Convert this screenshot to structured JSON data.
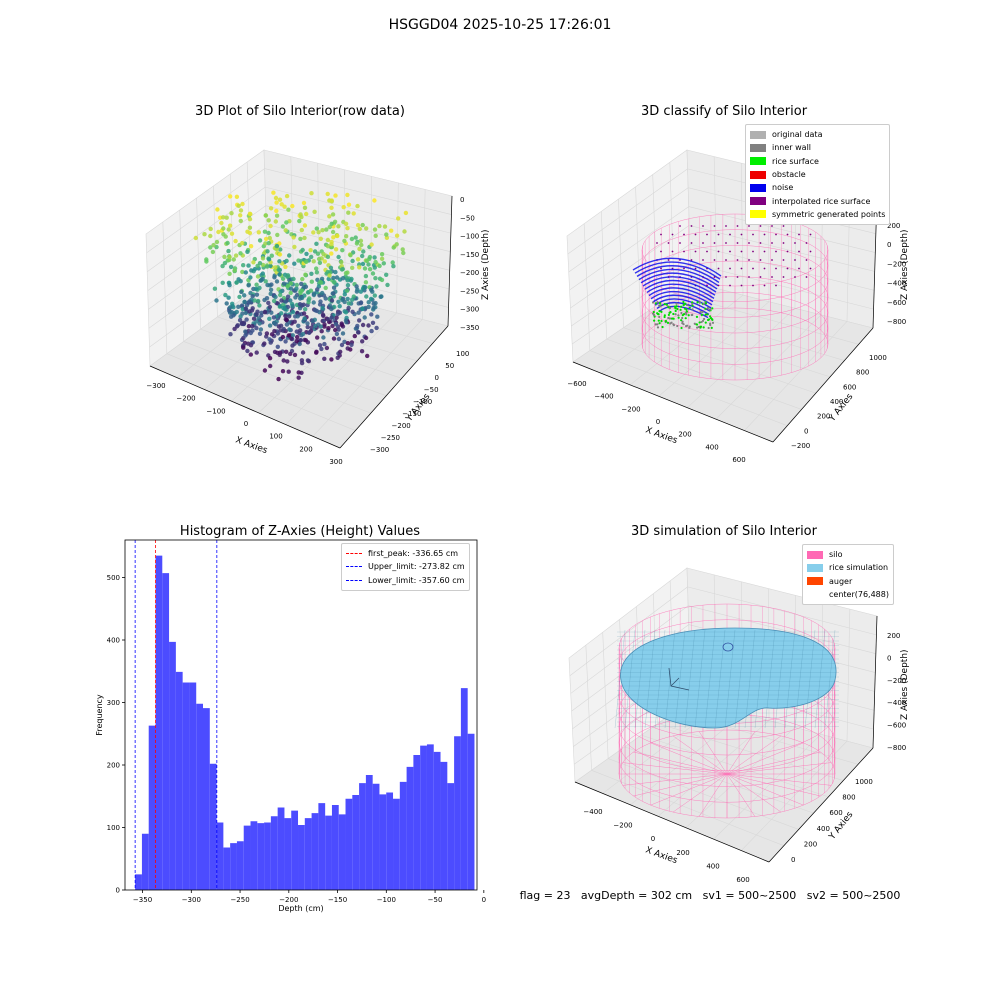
{
  "suptitle": "HSGGD04 2025-10-25 17:26:01",
  "panels": {
    "raw": {
      "title": "3D Plot of Silo Interior(row data)",
      "xlabel": "X Axies",
      "ylabel": "Y Axies",
      "zlabel": "Z Axies (Depth)",
      "xticks": [
        "−300",
        "−200",
        "−100",
        "0",
        "100",
        "200",
        "300"
      ],
      "yticks": [
        "100",
        "50",
        "0",
        "−50",
        "−100",
        "−150",
        "−200",
        "−250",
        "−300"
      ],
      "zticks": [
        "0",
        "−50",
        "−100",
        "−150",
        "−200",
        "−250",
        "−300",
        "−350"
      ]
    },
    "classify": {
      "title": "3D classify of Silo Interior",
      "xlabel": "X Axies",
      "ylabel": "Y Axies",
      "zlabel": "Z Axies (Depth)",
      "xticks": [
        "−600",
        "−400",
        "−200",
        "0",
        "200",
        "400",
        "600"
      ],
      "yticks": [
        "1000",
        "800",
        "600",
        "400",
        "200",
        "0",
        "−200"
      ],
      "zticks": [
        "200",
        "0",
        "−200",
        "−400",
        "−600",
        "−800"
      ],
      "legend": [
        {
          "label": "original data",
          "color": "#b0b0b0"
        },
        {
          "label": "inner wall",
          "color": "#808080"
        },
        {
          "label": "rice surface",
          "color": "#00ee00"
        },
        {
          "label": "obstacle",
          "color": "#ee0000"
        },
        {
          "label": "noise",
          "color": "#0000ee"
        },
        {
          "label": "interpolated rice surface",
          "color": "#800080"
        },
        {
          "label": "symmetric generated points",
          "color": "#ffff00"
        }
      ]
    },
    "simulation": {
      "title": "3D simulation of Silo Interior",
      "xlabel": "X Axies",
      "ylabel": "Y Axies",
      "zlabel": "Z Axies (Depth)",
      "xticks": [
        "−400",
        "−200",
        "0",
        "200",
        "400",
        "600"
      ],
      "yticks": [
        "1000",
        "800",
        "600",
        "400",
        "200",
        "0"
      ],
      "zticks": [
        "200",
        "0",
        "−200",
        "−400",
        "−600",
        "−800"
      ],
      "legend": [
        {
          "label": "silo",
          "color": "#ff69b4"
        },
        {
          "label": "rice simulation",
          "color": "#87ceeb"
        },
        {
          "label": "auger",
          "color": "#ff4500"
        },
        {
          "label": "center(76,488)",
          "color": "#ffffff"
        }
      ],
      "status": "flag = 23   avgDepth = 302 cm   sv1 = 500~2500   sv2 = 500~2500"
    }
  },
  "chart_data": [
    {
      "type": "bar",
      "title": "Histogram of Z-Axies (Height) Values",
      "xlabel": "Depth (cm)",
      "ylabel": "Frequency",
      "xlim": [
        -368,
        -7
      ],
      "ylim": [
        0,
        560
      ],
      "bin_start": -357.6,
      "bin_width": 6.96,
      "values": [
        25,
        90,
        263,
        535,
        507,
        397,
        349,
        332,
        332,
        298,
        291,
        202,
        108,
        68,
        75,
        78,
        103,
        110,
        107,
        108,
        118,
        132,
        115,
        127,
        104,
        115,
        123,
        139,
        119,
        136,
        121,
        146,
        152,
        171,
        184,
        170,
        153,
        156,
        146,
        173,
        197,
        216,
        231,
        233,
        221,
        205,
        171,
        246,
        323,
        250
      ],
      "xticks": [
        "−350",
        "−300",
        "−250",
        "−200",
        "−150",
        "−100",
        "−50",
        "0"
      ],
      "yticks": [
        "0",
        "100",
        "200",
        "300",
        "400",
        "500"
      ],
      "grid": false,
      "legend_position": "top-right",
      "bar_color": "#4c4cff",
      "lines": [
        {
          "label": "first_peak: -336.65 cm",
          "x": -336.65,
          "color": "#ff0000"
        },
        {
          "label": "Upper_limit: -273.82 cm",
          "x": -273.82,
          "color": "#0000ff"
        },
        {
          "label": "Lower_limit: -357.60 cm",
          "x": -357.6,
          "color": "#0000ff"
        }
      ]
    }
  ]
}
